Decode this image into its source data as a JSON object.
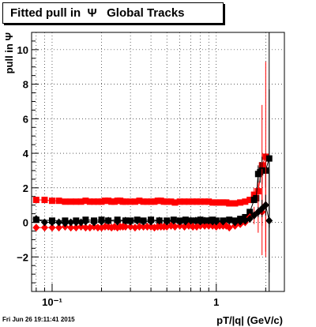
{
  "title": "Fitted pull in  Ψ   Global Tracks",
  "footer": "Fri Jun 26 19:11:41 2015",
  "chart_data": {
    "type": "scatter",
    "title": "Fitted pull in  Ψ   Global Tracks",
    "xlabel": "pT/|q| (GeV/c)",
    "ylabel": "pull in  Ψ",
    "x_scale": "log",
    "xlim": [
      0.075,
      2.6
    ],
    "ylim": [
      -4,
      11
    ],
    "grid": true,
    "x_tick_labels": [
      "10⁻¹",
      "1"
    ],
    "y_ticks": [
      -2,
      0,
      2,
      4,
      6,
      8,
      10
    ],
    "vline_x": 2.1,
    "series": [
      {
        "marker": "square",
        "color": "#ff0000",
        "x": [
          0.08,
          0.09,
          0.1,
          0.11,
          0.12,
          0.13,
          0.14,
          0.15,
          0.16,
          0.17,
          0.18,
          0.19,
          0.2,
          0.21,
          0.22,
          0.23,
          0.24,
          0.25,
          0.26,
          0.27,
          0.28,
          0.3,
          0.32,
          0.34,
          0.36,
          0.38,
          0.4,
          0.42,
          0.44,
          0.46,
          0.48,
          0.5,
          0.53,
          0.56,
          0.6,
          0.64,
          0.68,
          0.72,
          0.76,
          0.8,
          0.85,
          0.9,
          0.95,
          1.0,
          1.05,
          1.1,
          1.15,
          1.2,
          1.3,
          1.4,
          1.5,
          1.6,
          1.7,
          1.8,
          1.9,
          2.0
        ],
        "y": [
          1.3,
          1.3,
          1.25,
          1.25,
          1.2,
          1.2,
          1.2,
          1.2,
          1.25,
          1.2,
          1.2,
          1.2,
          1.2,
          1.25,
          1.25,
          1.2,
          1.2,
          1.25,
          1.25,
          1.2,
          1.2,
          1.2,
          1.2,
          1.25,
          1.2,
          1.2,
          1.2,
          1.2,
          1.25,
          1.25,
          1.2,
          1.2,
          1.2,
          1.15,
          1.2,
          1.2,
          1.2,
          1.2,
          1.2,
          1.2,
          1.2,
          1.2,
          1.15,
          1.15,
          1.15,
          1.15,
          1.15,
          1.1,
          1.1,
          1.15,
          1.2,
          1.3,
          1.6,
          1.8,
          3.3,
          3.8
        ],
        "err": [
          0.05,
          0.05,
          0.05,
          0.05,
          0.05,
          0.05,
          0.05,
          0.05,
          0.05,
          0.05,
          0.05,
          0.05,
          0.05,
          0.05,
          0.05,
          0.05,
          0.05,
          0.05,
          0.05,
          0.05,
          0.05,
          0.05,
          0.05,
          0.05,
          0.05,
          0.05,
          0.05,
          0.05,
          0.05,
          0.05,
          0.05,
          0.05,
          0.05,
          0.05,
          0.05,
          0.05,
          0.05,
          0.05,
          0.05,
          0.05,
          0.05,
          0.05,
          0.05,
          0.05,
          0.05,
          0.05,
          0.05,
          0.05,
          0.05,
          0.08,
          0.1,
          0.15,
          0.4,
          0.6,
          3.5,
          5.5
        ]
      },
      {
        "marker": "square",
        "color": "#000000",
        "x": [
          0.08,
          0.1,
          0.12,
          0.14,
          0.16,
          0.18,
          0.2,
          0.22,
          0.25,
          0.28,
          0.3,
          0.33,
          0.36,
          0.4,
          0.45,
          0.5,
          0.55,
          0.6,
          0.65,
          0.7,
          0.75,
          0.8,
          0.85,
          0.9,
          0.95,
          1.0,
          1.1,
          1.2,
          1.3,
          1.4,
          1.5,
          1.6,
          1.7,
          1.75,
          1.8,
          1.85,
          1.9,
          2.0,
          2.1
        ],
        "y": [
          0.15,
          0.1,
          0.1,
          0.1,
          0.15,
          0.1,
          0.15,
          0.1,
          0.15,
          0.1,
          0.1,
          0.15,
          0.1,
          0.15,
          0.1,
          0.1,
          0.15,
          0.1,
          0.15,
          0.1,
          0.1,
          0.15,
          0.1,
          0.1,
          0.15,
          0.1,
          0.1,
          0.15,
          0.1,
          0.2,
          0.3,
          0.6,
          1.3,
          1.4,
          2.8,
          2.9,
          3.0,
          3.0,
          3.7
        ],
        "err": [
          0.03,
          0.03,
          0.03,
          0.03,
          0.03,
          0.03,
          0.03,
          0.03,
          0.03,
          0.03,
          0.03,
          0.03,
          0.03,
          0.03,
          0.03,
          0.03,
          0.03,
          0.03,
          0.03,
          0.03,
          0.03,
          0.03,
          0.03,
          0.03,
          0.03,
          0.03,
          0.03,
          0.03,
          0.05,
          0.05,
          0.05,
          0.1,
          0.1,
          0.2,
          0.5,
          0.6,
          0.8,
          1.0,
          4.0
        ]
      },
      {
        "marker": "diamond",
        "color": "#ff0000",
        "x": [
          0.08,
          0.09,
          0.1,
          0.11,
          0.12,
          0.13,
          0.14,
          0.15,
          0.16,
          0.17,
          0.18,
          0.19,
          0.2,
          0.21,
          0.22,
          0.23,
          0.24,
          0.25,
          0.26,
          0.27,
          0.28,
          0.3,
          0.32,
          0.34,
          0.36,
          0.38,
          0.4,
          0.42,
          0.44,
          0.46,
          0.48,
          0.5,
          0.53,
          0.56,
          0.6,
          0.64,
          0.68,
          0.72,
          0.76,
          0.8,
          0.85,
          0.9,
          0.95,
          1.0,
          1.05,
          1.1,
          1.15,
          1.2,
          1.3,
          1.4,
          1.5,
          1.6,
          1.7,
          1.8,
          1.9,
          2.0
        ],
        "y": [
          -0.3,
          -0.3,
          -0.3,
          -0.3,
          -0.25,
          -0.3,
          -0.3,
          -0.25,
          -0.3,
          -0.3,
          -0.25,
          -0.3,
          -0.3,
          -0.25,
          -0.25,
          -0.3,
          -0.25,
          -0.3,
          -0.25,
          -0.25,
          -0.25,
          -0.25,
          -0.3,
          -0.25,
          -0.25,
          -0.25,
          -0.25,
          -0.3,
          -0.25,
          -0.25,
          -0.25,
          -0.25,
          -0.2,
          -0.25,
          -0.2,
          -0.25,
          -0.2,
          -0.25,
          -0.25,
          -0.2,
          -0.2,
          -0.2,
          -0.2,
          -0.25,
          -0.2,
          -0.2,
          -0.2,
          -0.3,
          -0.2,
          -0.1,
          0.0,
          0.3,
          0.4,
          0.6,
          0.6,
          1.0
        ],
        "err": [
          0.03,
          0.03,
          0.03,
          0.03,
          0.03,
          0.03,
          0.03,
          0.03,
          0.03,
          0.03,
          0.03,
          0.03,
          0.03,
          0.03,
          0.03,
          0.03,
          0.03,
          0.03,
          0.03,
          0.03,
          0.03,
          0.03,
          0.03,
          0.03,
          0.03,
          0.03,
          0.03,
          0.03,
          0.03,
          0.03,
          0.03,
          0.03,
          0.03,
          0.03,
          0.03,
          0.03,
          0.03,
          0.03,
          0.03,
          0.03,
          0.03,
          0.03,
          0.03,
          0.03,
          0.03,
          0.03,
          0.03,
          0.03,
          0.05,
          0.05,
          0.1,
          0.2,
          0.5,
          1.2,
          2.5,
          3.0
        ]
      },
      {
        "marker": "diamond",
        "color": "#000000",
        "x": [
          0.08,
          0.09,
          0.1,
          0.11,
          0.12,
          0.13,
          0.14,
          0.15,
          0.16,
          0.18,
          0.2,
          0.22,
          0.25,
          0.28,
          0.3,
          0.33,
          0.36,
          0.4,
          0.45,
          0.5,
          0.55,
          0.6,
          0.65,
          0.7,
          0.75,
          0.8,
          0.85,
          0.9,
          0.95,
          1.0,
          1.1,
          1.2,
          1.3,
          1.4,
          1.5,
          1.6,
          1.7,
          1.8,
          1.9,
          2.0,
          2.1
        ],
        "y": [
          0.2,
          0.0,
          0.0,
          0.0,
          -0.05,
          0.0,
          0.0,
          0.0,
          0.05,
          0.0,
          0.05,
          0.1,
          0.05,
          0.1,
          0.05,
          0.1,
          0.05,
          0.05,
          0.1,
          0.05,
          0.1,
          0.05,
          0.05,
          0.1,
          0.1,
          0.05,
          0.1,
          0.1,
          0.05,
          0.05,
          0.05,
          0.1,
          0.0,
          0.05,
          0.1,
          0.2,
          0.4,
          0.6,
          0.8,
          1.0,
          0.1
        ],
        "err": [
          0.03,
          0.03,
          0.03,
          0.03,
          0.03,
          0.03,
          0.03,
          0.03,
          0.03,
          0.03,
          0.03,
          0.03,
          0.03,
          0.03,
          0.03,
          0.03,
          0.03,
          0.03,
          0.03,
          0.03,
          0.03,
          0.03,
          0.03,
          0.03,
          0.03,
          0.03,
          0.03,
          0.03,
          0.03,
          0.03,
          0.03,
          0.03,
          0.03,
          0.05,
          0.05,
          0.1,
          0.2,
          0.3,
          0.5,
          0.6,
          3.0
        ]
      }
    ]
  }
}
